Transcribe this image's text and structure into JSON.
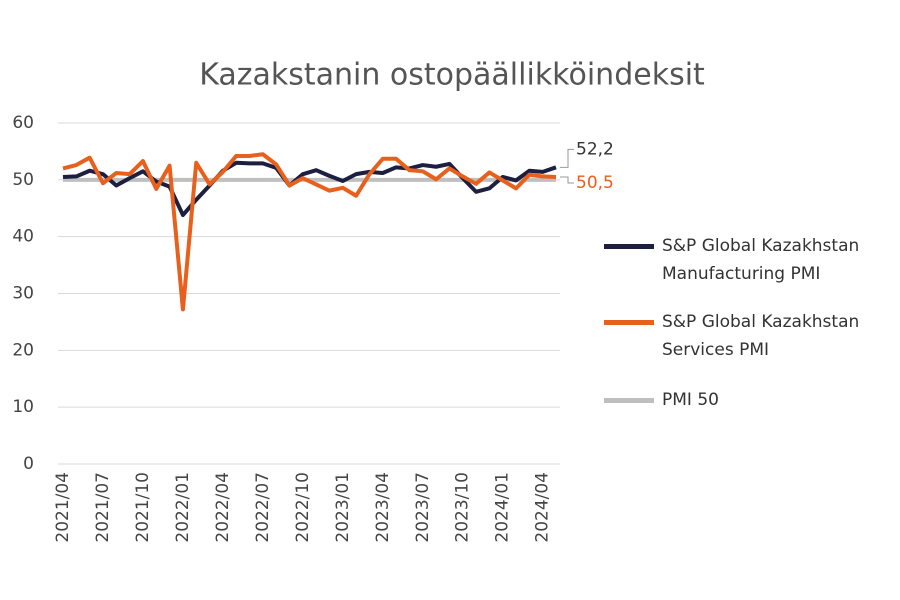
{
  "chart_data": {
    "type": "line",
    "title": "Kazakstanin ostopäällikköindeksit",
    "categories": [
      "2021/04",
      null,
      null,
      "2021/07",
      null,
      null,
      "2021/10",
      null,
      null,
      "2022/01",
      null,
      null,
      "2022/04",
      null,
      null,
      "2022/07",
      null,
      null,
      "2022/10",
      null,
      null,
      "2023/01",
      null,
      null,
      "2023/04",
      null,
      null,
      "2023/07",
      null,
      null,
      "2023/10",
      null,
      null,
      "2024/01",
      null,
      null,
      "2024/04",
      null
    ],
    "series": [
      {
        "name": "S&P Global Kazakhstan Manufacturing PMI",
        "color": "#1c1f3f",
        "values": [
          50.5,
          50.6,
          51.6,
          51.0,
          49.0,
          50.3,
          51.5,
          49.7,
          48.8,
          43.8,
          46.5,
          49.0,
          51.6,
          53.0,
          52.9,
          52.9,
          52.1,
          49.0,
          51.0,
          51.7,
          50.7,
          49.8,
          51.0,
          51.4,
          51.2,
          52.2,
          52.0,
          52.6,
          52.3,
          52.8,
          50.3,
          47.9,
          48.5,
          50.5,
          49.9,
          51.6,
          51.4,
          52.2
        ],
        "value_labels": [
          null,
          null,
          null,
          null,
          null,
          null,
          null,
          null,
          null,
          null,
          null,
          null,
          null,
          null,
          null,
          null,
          null,
          null,
          null,
          null,
          null,
          null,
          null,
          null,
          null,
          null,
          null,
          null,
          null,
          null,
          null,
          null,
          null,
          null,
          null,
          null,
          null,
          "52,2"
        ]
      },
      {
        "name": "S&P Global Kazakhstan Services PMI",
        "color": "#e8601c",
        "values": [
          52.0,
          52.6,
          53.9,
          49.4,
          51.2,
          51.0,
          53.3,
          48.4,
          52.5,
          27.2,
          53.0,
          49.2,
          51.4,
          54.2,
          54.2,
          54.5,
          52.7,
          49.0,
          50.3,
          49.2,
          48.1,
          48.6,
          47.2,
          51.0,
          53.7,
          53.7,
          51.7,
          51.5,
          50.1,
          52.0,
          50.6,
          49.3,
          51.3,
          49.9,
          48.5,
          50.9,
          50.6,
          50.5
        ],
        "value_labels": [
          null,
          null,
          null,
          null,
          null,
          null,
          null,
          null,
          null,
          null,
          null,
          null,
          null,
          null,
          null,
          null,
          null,
          null,
          null,
          null,
          null,
          null,
          null,
          null,
          null,
          null,
          null,
          null,
          null,
          null,
          null,
          null,
          null,
          null,
          null,
          null,
          null,
          "50,5"
        ]
      },
      {
        "name": "PMI 50",
        "color": "#bfbfbf",
        "values": [
          50,
          50,
          50,
          50,
          50,
          50,
          50,
          50,
          50,
          50,
          50,
          50,
          50,
          50,
          50,
          50,
          50,
          50,
          50,
          50,
          50,
          50,
          50,
          50,
          50,
          50,
          50,
          50,
          50,
          50,
          50,
          50,
          50,
          50,
          50,
          50,
          50,
          50
        ]
      }
    ],
    "ylim": [
      0,
      60
    ],
    "yticks": [
      0,
      10,
      20,
      30,
      40,
      50,
      60
    ],
    "grid": true
  }
}
